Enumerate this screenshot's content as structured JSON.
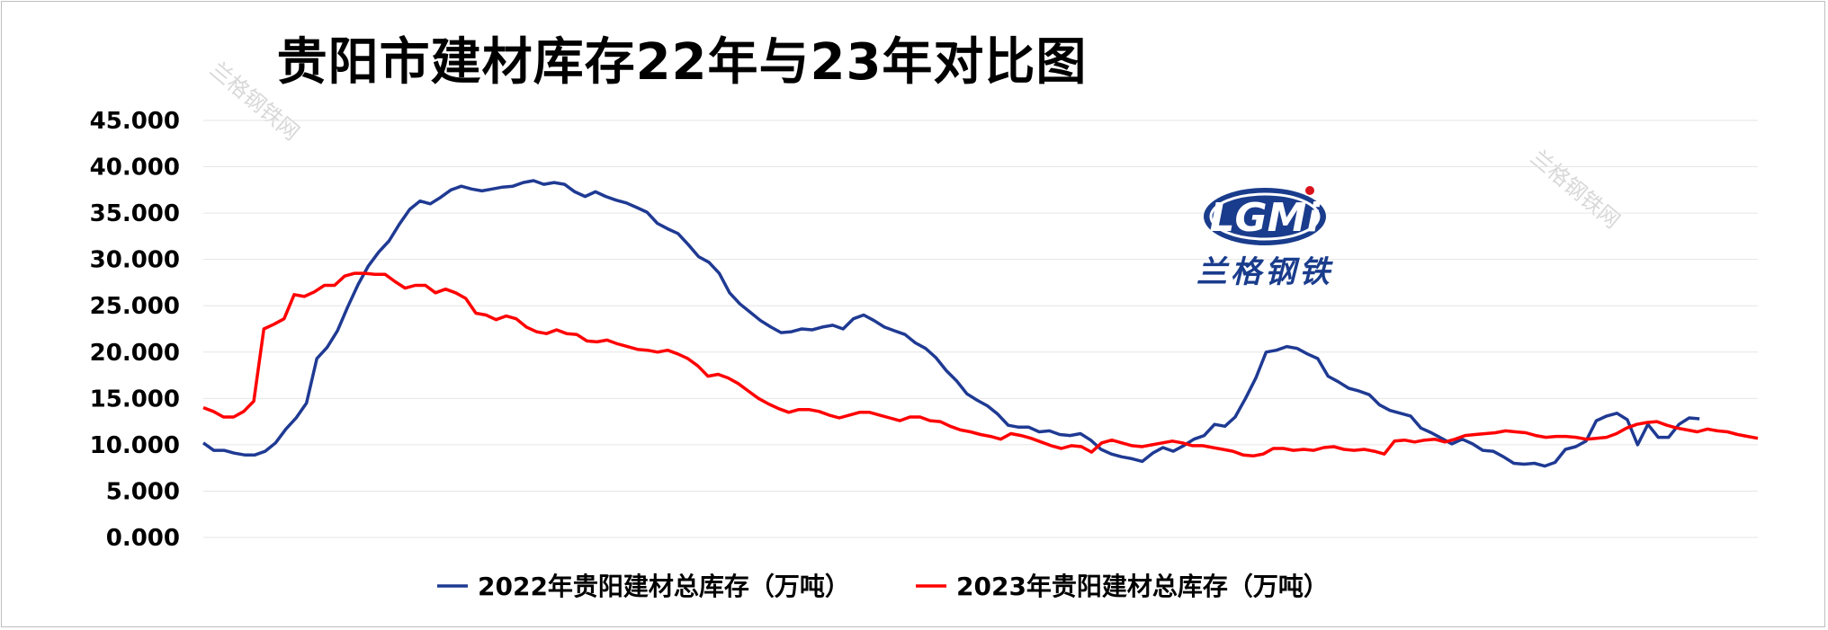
{
  "watermark": {
    "text": "兰格钢铁网"
  },
  "logo": {
    "mark": "LGMi",
    "name": "兰格钢铁"
  },
  "colors": {
    "series_2022": "#1f3a93",
    "series_2023": "#ff0000",
    "grid": "#e6e6e6",
    "logo_blue": "#1a3c8c",
    "logo_red": "#d9121b"
  },
  "chart_data": {
    "type": "line",
    "title": "贵阳市建材库存22年与23年对比图",
    "xlabel": "",
    "ylabel": "",
    "ylim": [
      0,
      45
    ],
    "yticks": [
      "45.000",
      "40.000",
      "35.000",
      "30.000",
      "25.000",
      "20.000",
      "15.000",
      "10.000",
      "5.000",
      "0.000"
    ],
    "grid": true,
    "legend": "bottom",
    "series": [
      {
        "name": "2022年贵阳建材总库存（万吨）",
        "color": "#1f3a93",
        "values": [
          10.2,
          9.4,
          9.4,
          9.1,
          8.9,
          8.9,
          9.3,
          10.2,
          11.7,
          12.9,
          14.5,
          19.3,
          20.5,
          22.3,
          24.9,
          27.3,
          29.3,
          30.8,
          32.0,
          33.8,
          35.4,
          36.3,
          36.0,
          36.7,
          37.5,
          37.9,
          37.6,
          37.4,
          37.6,
          37.8,
          37.9,
          38.3,
          38.5,
          38.1,
          38.3,
          38.1,
          37.3,
          36.8,
          37.3,
          36.8,
          36.4,
          36.1,
          35.6,
          35.1,
          33.9,
          33.3,
          32.8,
          31.6,
          30.3,
          29.7,
          28.5,
          26.4,
          25.2,
          24.3,
          23.4,
          22.7,
          22.1,
          22.2,
          22.5,
          22.4,
          22.7,
          22.9,
          22.5,
          23.6,
          24.0,
          23.4,
          22.7,
          22.3,
          21.9,
          21.0,
          20.4,
          19.4,
          18.0,
          16.9,
          15.5,
          14.8,
          14.2,
          13.3,
          12.1,
          11.9,
          11.9,
          11.4,
          11.5,
          11.1,
          11.0,
          11.2,
          10.5,
          9.5,
          9.0,
          8.7,
          8.5,
          8.2,
          9.1,
          9.7,
          9.3,
          9.9,
          10.6,
          11.0,
          12.2,
          12.0,
          13.0,
          15.0,
          17.2,
          20.0,
          20.2,
          20.6,
          20.4,
          19.8,
          19.3,
          17.4,
          16.8,
          16.1,
          15.8,
          15.4,
          14.3,
          13.7,
          13.4,
          13.1,
          11.8,
          11.3,
          10.7,
          10.1,
          10.6,
          10.1,
          9.4,
          9.3,
          8.7,
          8.0,
          7.9,
          8.0,
          7.7,
          8.1,
          9.5,
          9.8,
          10.4,
          12.6,
          13.1,
          13.4,
          12.7,
          10.0,
          12.2,
          10.8,
          10.8,
          12.2,
          12.9,
          12.8
        ],
        "x_end_fraction": 0.9625
      },
      {
        "name": "2023年贵阳建材总库存（万吨）",
        "color": "#ff0000",
        "values": [
          14.0,
          13.6,
          13.0,
          13.0,
          13.6,
          14.7,
          22.5,
          23.0,
          23.6,
          26.2,
          26.0,
          26.5,
          27.2,
          27.2,
          28.2,
          28.5,
          28.5,
          28.4,
          28.4,
          27.6,
          26.9,
          27.2,
          27.2,
          26.4,
          26.8,
          26.4,
          25.8,
          24.2,
          24.0,
          23.5,
          23.9,
          23.6,
          22.7,
          22.2,
          22.0,
          22.4,
          22.0,
          21.9,
          21.2,
          21.1,
          21.3,
          20.9,
          20.6,
          20.3,
          20.2,
          20.0,
          20.2,
          19.8,
          19.3,
          18.5,
          17.4,
          17.6,
          17.2,
          16.6,
          15.8,
          15.0,
          14.4,
          13.9,
          13.5,
          13.8,
          13.8,
          13.6,
          13.2,
          12.9,
          13.2,
          13.5,
          13.5,
          13.2,
          12.9,
          12.6,
          13.0,
          13.0,
          12.6,
          12.5,
          12.0,
          11.6,
          11.4,
          11.1,
          10.9,
          10.6,
          11.2,
          11.0,
          10.7,
          10.3,
          9.9,
          9.6,
          9.9,
          9.8,
          9.2,
          10.2,
          10.5,
          10.2,
          9.9,
          9.8,
          10.0,
          10.2,
          10.4,
          10.2,
          9.9,
          9.9,
          9.7,
          9.5,
          9.3,
          8.9,
          8.8,
          9.0,
          9.6,
          9.6,
          9.4,
          9.5,
          9.4,
          9.7,
          9.8,
          9.5,
          9.4,
          9.5,
          9.3,
          9.0,
          10.4,
          10.5,
          10.3,
          10.5,
          10.6,
          10.3,
          10.6,
          11.0,
          11.1,
          11.2,
          11.3,
          11.5,
          11.4,
          11.3,
          11.0,
          10.8,
          10.9,
          10.9,
          10.8,
          10.6,
          10.7,
          10.8,
          11.2,
          11.8,
          12.2,
          12.4,
          12.5,
          12.1,
          11.8,
          11.6,
          11.4,
          11.7,
          11.5,
          11.4,
          11.1,
          10.9,
          10.7
        ],
        "x_end_fraction": 1.0
      }
    ]
  }
}
